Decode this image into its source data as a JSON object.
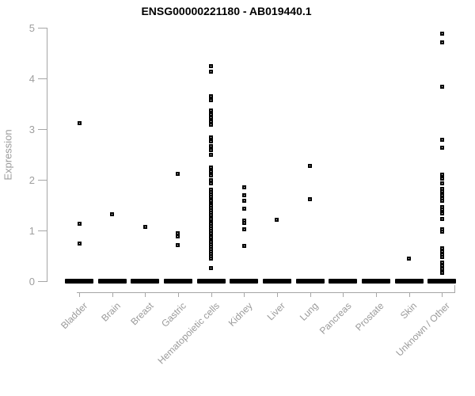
{
  "title": "ENSG00000221180 - AB019440.1",
  "y_axis": {
    "label": "Expression",
    "tick_labels": [
      "0",
      "1",
      "2",
      "3",
      "4",
      "5"
    ]
  },
  "colors": {
    "marker": "#000000",
    "axis_line": "#a6a6a6",
    "axis_text": "#9a9a9a",
    "title_text": "#000000",
    "background": "#ffffff"
  },
  "chart_data": {
    "type": "scatter",
    "subtype": "strip-plot",
    "title": "ENSG00000221180 - AB019440.1",
    "xlabel": "",
    "ylabel": "Expression",
    "ylim": [
      0,
      5
    ],
    "y_ticks": [
      0,
      1,
      2,
      3,
      4,
      5
    ],
    "grid": "off",
    "legend": "none",
    "marker_style": "small open black square",
    "zero_cluster_note": "every category shows a dense horizontal cluster of many samples at expression 0",
    "categories": [
      "Bladder",
      "Brain",
      "Breast",
      "Gastric",
      "Hematopoietic cells",
      "Kidney",
      "Liver",
      "Lung",
      "Pancreas",
      "Prostate",
      "Skin",
      "Unknown / Other"
    ],
    "series": [
      {
        "name": "Bladder",
        "zero_cluster": true,
        "values": [
          3.11,
          1.13,
          0.75
        ]
      },
      {
        "name": "Brain",
        "zero_cluster": true,
        "values": [
          1.32
        ]
      },
      {
        "name": "Breast",
        "zero_cluster": true,
        "values": [
          1.07
        ]
      },
      {
        "name": "Gastric",
        "zero_cluster": true,
        "values": [
          2.11,
          0.95,
          0.88,
          0.71
        ]
      },
      {
        "name": "Hematopoietic cells",
        "zero_cluster": true,
        "values": [
          4.25,
          4.14,
          3.65,
          3.57,
          3.36,
          3.29,
          3.22,
          3.15,
          3.08,
          2.84,
          2.76,
          2.67,
          2.59,
          2.5,
          2.24,
          2.16,
          2.08,
          2.0,
          1.93,
          1.8,
          1.76,
          1.71,
          1.67,
          1.62,
          1.58,
          1.53,
          1.49,
          1.44,
          1.4,
          1.35,
          1.31,
          1.26,
          1.22,
          1.17,
          1.13,
          1.08,
          1.04,
          0.99,
          0.95,
          0.9,
          0.86,
          0.81,
          0.77,
          0.72,
          0.68,
          0.63,
          0.59,
          0.54,
          0.5,
          0.45,
          0.26
        ]
      },
      {
        "name": "Kidney",
        "zero_cluster": true,
        "values": [
          1.85,
          1.69,
          1.59,
          1.43,
          1.2,
          1.15,
          1.03,
          0.7
        ]
      },
      {
        "name": "Liver",
        "zero_cluster": true,
        "values": [
          1.21
        ]
      },
      {
        "name": "Lung",
        "zero_cluster": true,
        "values": [
          2.27,
          1.61
        ]
      },
      {
        "name": "Pancreas",
        "zero_cluster": true,
        "values": []
      },
      {
        "name": "Prostate",
        "zero_cluster": true,
        "values": []
      },
      {
        "name": "Skin",
        "zero_cluster": true,
        "values": [
          0.44
        ]
      },
      {
        "name": "Unknown / Other",
        "zero_cluster": true,
        "values": [
          4.88,
          4.71,
          3.84,
          2.79,
          2.64,
          2.1,
          2.03,
          1.93,
          1.82,
          1.77,
          1.69,
          1.63,
          1.58,
          1.46,
          1.41,
          1.33,
          1.22,
          1.03,
          0.97,
          0.65,
          0.59,
          0.53,
          0.48,
          0.36,
          0.3,
          0.24,
          0.17
        ]
      }
    ]
  }
}
